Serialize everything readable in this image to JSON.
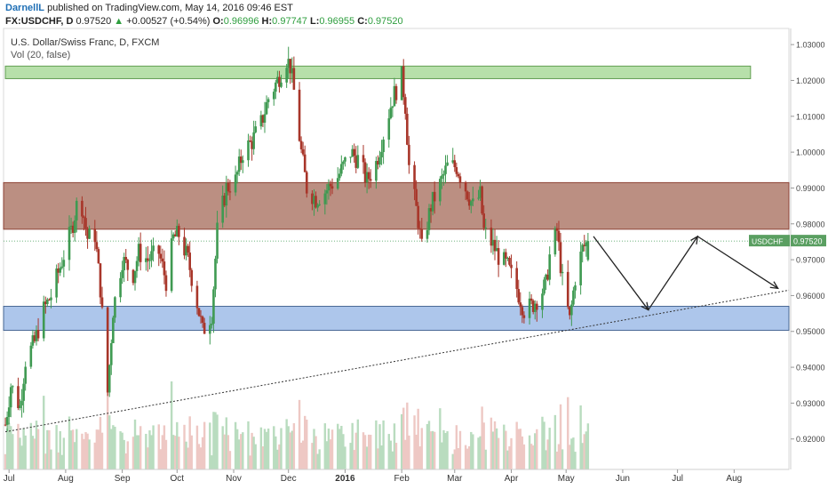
{
  "header": {
    "author": "DarnellL",
    "published_text": "published on TradingView.com, May 14, 2016 09:46 EST",
    "symbol": "FX:USDCHF, D",
    "last": "0.97520",
    "change": "+0.00527 (+0.54%)",
    "o_label": "O:",
    "o_value": "0.96996",
    "h_label": "H:",
    "h_value": "0.97747",
    "l_label": "L:",
    "l_value": "0.96955",
    "c_label": "C:",
    "c_value": "0.97520"
  },
  "legend": {
    "instrument": "U.S. Dollar/Swiss Franc, D, FXCM",
    "volume": "Vol (20, false)"
  },
  "price_badge": {
    "label": "USDCHF",
    "value": "0.97520"
  },
  "colors": {
    "up": "#3f9a52",
    "down": "#a8362a",
    "vol_up": "#b9dcbf",
    "vol_down": "#eec8c4",
    "resistance_zone": "#b88a7c",
    "support_zone": "#a9c3ea",
    "top_zone": "#b4dfa6",
    "badge": "#5a9f61"
  },
  "chart_data": {
    "type": "candlestick",
    "title": "U.S. Dollar/Swiss Franc, D, FXCM",
    "ylim": [
      0.9115,
      1.0345
    ],
    "y_ticks": [
      "0.92000",
      "0.93000",
      "0.94000",
      "0.95000",
      "0.96000",
      "0.97000",
      "0.98000",
      "0.99000",
      "1.00000",
      "1.01000",
      "1.02000",
      "1.03000"
    ],
    "x_ticks": [
      {
        "label": "Jul",
        "date": "2015-07-01"
      },
      {
        "label": "Aug",
        "date": "2015-08-01"
      },
      {
        "label": "Sep",
        "date": "2015-09-01"
      },
      {
        "label": "Oct",
        "date": "2015-10-01"
      },
      {
        "label": "Nov",
        "date": "2015-11-01"
      },
      {
        "label": "Dec",
        "date": "2015-12-01"
      },
      {
        "label": "2016",
        "date": "2016-01-01"
      },
      {
        "label": "Feb",
        "date": "2016-02-01"
      },
      {
        "label": "Mar",
        "date": "2016-03-01"
      },
      {
        "label": "Apr",
        "date": "2016-04-01"
      },
      {
        "label": "May",
        "date": "2016-05-01"
      },
      {
        "label": "Jun",
        "date": "2016-06-01"
      },
      {
        "label": "Jul",
        "date": "2016-07-01"
      },
      {
        "label": "Aug",
        "date": "2016-08-01"
      }
    ],
    "price_path": [
      [
        "2015-06-29",
        0.924
      ],
      [
        "2015-07-02",
        0.935
      ],
      [
        "2015-07-07",
        0.929
      ],
      [
        "2015-07-10",
        0.942
      ],
      [
        "2015-07-15",
        0.947
      ],
      [
        "2015-07-20",
        0.956
      ],
      [
        "2015-07-24",
        0.96
      ],
      [
        "2015-07-29",
        0.968
      ],
      [
        "2015-08-04",
        0.978
      ],
      [
        "2015-08-07",
        0.985
      ],
      [
        "2015-08-10",
        0.985
      ],
      [
        "2015-08-13",
        0.976
      ],
      [
        "2015-08-17",
        0.977
      ],
      [
        "2015-08-20",
        0.962
      ],
      [
        "2015-08-24",
        0.933
      ],
      [
        "2015-08-27",
        0.956
      ],
      [
        "2015-09-01",
        0.97
      ],
      [
        "2015-09-07",
        0.966
      ],
      [
        "2015-09-10",
        0.972
      ],
      [
        "2015-09-15",
        0.97
      ],
      [
        "2015-09-21",
        0.972
      ],
      [
        "2015-09-25",
        0.964
      ],
      [
        "2015-09-29",
        0.976
      ],
      [
        "2015-10-02",
        0.977
      ],
      [
        "2015-10-07",
        0.97
      ],
      [
        "2015-10-12",
        0.958
      ],
      [
        "2015-10-15",
        0.95
      ],
      [
        "2015-10-20",
        0.955
      ],
      [
        "2015-10-23",
        0.978
      ],
      [
        "2015-10-28",
        0.99
      ],
      [
        "2015-11-02",
        0.992
      ],
      [
        "2015-11-06",
        1.0
      ],
      [
        "2015-11-11",
        1.003
      ],
      [
        "2015-11-16",
        1.008
      ],
      [
        "2015-11-20",
        1.015
      ],
      [
        "2015-11-25",
        1.02
      ],
      [
        "2015-11-30",
        1.026
      ],
      [
        "2015-12-02",
        1.024
      ],
      [
        "2015-12-04",
        1.017
      ],
      [
        "2015-12-08",
        1.0
      ],
      [
        "2015-12-11",
        0.99
      ],
      [
        "2015-12-16",
        0.987
      ],
      [
        "2015-12-21",
        0.989
      ],
      [
        "2015-12-28",
        0.993
      ],
      [
        "2016-01-04",
        1.0
      ],
      [
        "2016-01-08",
        0.998
      ],
      [
        "2016-01-13",
        0.992
      ],
      [
        "2016-01-18",
        0.997
      ],
      [
        "2016-01-22",
        1.005
      ],
      [
        "2016-01-27",
        1.015
      ],
      [
        "2016-02-01",
        1.021
      ],
      [
        "2016-02-03",
        1.013
      ],
      [
        "2016-02-05",
        0.996
      ],
      [
        "2016-02-10",
        0.981
      ],
      [
        "2016-02-12",
        0.973
      ],
      [
        "2016-02-17",
        0.985
      ],
      [
        "2016-02-22",
        0.991
      ],
      [
        "2016-02-26",
        0.996
      ],
      [
        "2016-03-02",
        0.996
      ],
      [
        "2016-03-07",
        0.99
      ],
      [
        "2016-03-11",
        0.985
      ],
      [
        "2016-03-15",
        0.988
      ],
      [
        "2016-03-17",
        0.978
      ],
      [
        "2016-03-22",
        0.974
      ],
      [
        "2016-03-25",
        0.971
      ],
      [
        "2016-03-30",
        0.968
      ],
      [
        "2016-04-04",
        0.962
      ],
      [
        "2016-04-08",
        0.956
      ],
      [
        "2016-04-12",
        0.957
      ],
      [
        "2016-04-15",
        0.959
      ],
      [
        "2016-04-20",
        0.963
      ],
      [
        "2016-04-22",
        0.971
      ],
      [
        "2016-04-26",
        0.978
      ],
      [
        "2016-04-29",
        0.964
      ],
      [
        "2016-05-03",
        0.953
      ],
      [
        "2016-05-06",
        0.965
      ],
      [
        "2016-05-10",
        0.973
      ],
      [
        "2016-05-13",
        0.9752
      ]
    ],
    "zones": [
      {
        "name": "resistance",
        "from": 0.9785,
        "to": 0.9915
      },
      {
        "name": "support",
        "from": 0.9503,
        "to": 0.957
      },
      {
        "name": "top",
        "from": 1.0205,
        "to": 1.024,
        "start": "2015-06-29",
        "end": "2016-08-10"
      }
    ],
    "trendline": [
      [
        "2015-06-29",
        0.922
      ],
      [
        "2016-08-31",
        0.9615
      ]
    ],
    "projection": [
      [
        "2016-05-16",
        0.9765
      ],
      [
        "2016-06-15",
        0.956
      ],
      [
        "2016-07-12",
        0.9765
      ],
      [
        "2016-08-25",
        0.962
      ]
    ],
    "current_price": 0.9752
  }
}
